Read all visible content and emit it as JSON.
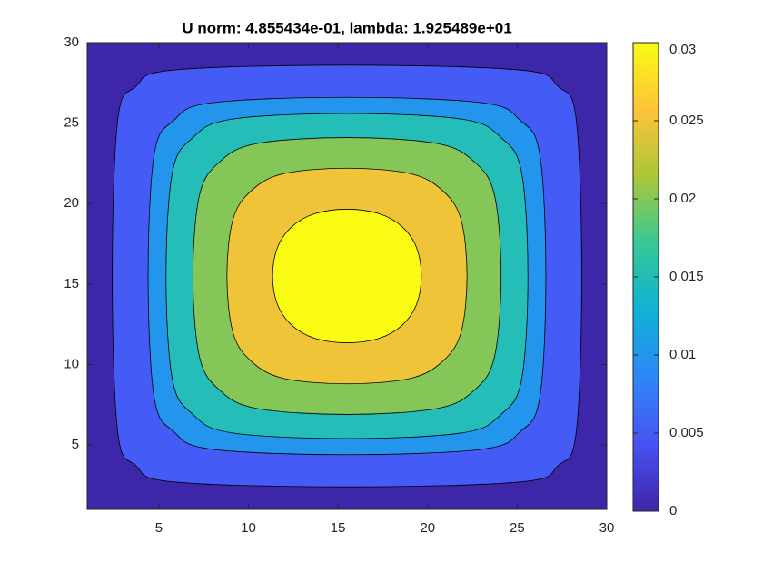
{
  "chart_data": {
    "type": "contour",
    "title": "U norm: 4.855434e-01, lambda: 1.925489e+01",
    "xlim": [
      1,
      30
    ],
    "ylim": [
      1,
      30
    ],
    "xticks": [
      5,
      10,
      15,
      20,
      25,
      30
    ],
    "yticks": [
      5,
      10,
      15,
      20,
      25,
      30
    ],
    "clim": [
      0,
      0.03
    ],
    "cticks": [
      0,
      0.005,
      0.01,
      0.015,
      0.02,
      0.025,
      0.03
    ],
    "colormap": [
      "#3e26a8",
      "#4852f4",
      "#2d87f7",
      "#11b1d6",
      "#37c897",
      "#abc739",
      "#fec338",
      "#f9fb14"
    ],
    "base_level": 0,
    "contours": [
      {
        "level": 0.005,
        "x": [
          28.6,
          28.29,
          27.28,
          25.25,
          15.5,
          5.75,
          3.72,
          2.71,
          2.4,
          2.71,
          3.72,
          5.75,
          15.5,
          25.25,
          27.28,
          28.29
        ],
        "y": [
          15.5,
          25.25,
          27.28,
          28.29,
          28.6,
          28.29,
          27.28,
          25.25,
          15.5,
          5.75,
          3.72,
          2.71,
          2.4,
          2.71,
          3.72,
          5.75
        ]
      },
      {
        "level": 0.01,
        "x": [
          26.6,
          26.26,
          25.17,
          23.06,
          15.5,
          7.94,
          5.83,
          4.74,
          4.4,
          4.74,
          5.83,
          7.94,
          15.5,
          23.06,
          25.17,
          26.26
        ],
        "y": [
          15.5,
          23.06,
          25.17,
          26.26,
          26.6,
          26.26,
          25.17,
          23.06,
          15.5,
          7.94,
          5.83,
          4.74,
          4.4,
          4.74,
          5.83,
          7.94
        ]
      },
      {
        "level": 0.015,
        "x": [
          25.6,
          25.24,
          24.1,
          21.96,
          15.5,
          9.04,
          6.9,
          5.76,
          5.4,
          5.76,
          6.9,
          9.04,
          15.5,
          21.96,
          24.1,
          25.24
        ],
        "y": [
          15.5,
          21.96,
          24.1,
          25.24,
          25.6,
          25.24,
          24.1,
          21.96,
          15.5,
          9.04,
          6.9,
          5.76,
          5.4,
          5.76,
          6.9,
          9.04
        ]
      },
      {
        "level": 0.02,
        "x": [
          24.1,
          23.73,
          22.6,
          20.54,
          15.5,
          10.46,
          8.4,
          7.27,
          6.9,
          7.27,
          8.4,
          10.46,
          15.5,
          20.54,
          22.6,
          23.73
        ],
        "y": [
          15.5,
          20.54,
          22.6,
          23.73,
          24.1,
          23.73,
          22.6,
          20.54,
          15.5,
          10.46,
          8.4,
          7.27,
          6.9,
          7.27,
          8.4,
          10.46
        ]
      },
      {
        "level": 0.025,
        "x": [
          22.2,
          21.86,
          20.82,
          19.03,
          15.5,
          11.97,
          10.18,
          9.14,
          8.8,
          9.14,
          10.18,
          11.97,
          15.5,
          19.03,
          20.82,
          21.86
        ],
        "y": [
          15.5,
          19.03,
          20.82,
          21.86,
          22.2,
          21.86,
          20.82,
          19.03,
          15.5,
          11.97,
          10.18,
          9.14,
          8.8,
          9.14,
          10.18,
          11.97
        ]
      },
      {
        "level": 0.03,
        "x": [
          19.65,
          19.37,
          18.57,
          17.3,
          15.5,
          13.7,
          12.43,
          11.63,
          11.35,
          11.63,
          12.43,
          13.7,
          15.5,
          17.3,
          18.57,
          19.37
        ],
        "y": [
          15.5,
          17.3,
          18.57,
          19.37,
          19.65,
          19.37,
          18.57,
          17.3,
          15.5,
          13.7,
          12.43,
          11.63,
          11.35,
          11.63,
          12.43,
          13.7
        ]
      }
    ]
  }
}
